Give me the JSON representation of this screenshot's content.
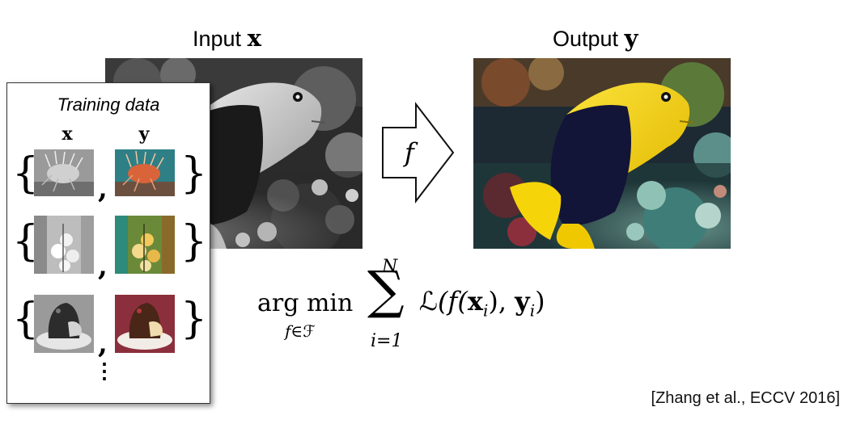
{
  "input_label": {
    "text": "Input ",
    "variable": "x"
  },
  "output_label": {
    "text": "Output ",
    "variable": "y"
  },
  "arrow_label": "f",
  "training": {
    "title": "Training data",
    "col_x": "x",
    "col_y": "y",
    "open_brace": "{",
    "close_brace": "}",
    "comma": ",",
    "ellipsis": "⋮"
  },
  "formula": {
    "operator": "arg min",
    "subscript": "f∈",
    "subscript_set": "ℱ",
    "upper_limit": "N",
    "lower_limit": "i=1",
    "sum_symbol": "∑",
    "expression_loss": "ℒ",
    "expression_pre": "(f(",
    "expression_x": "x",
    "expression_mid": "), ",
    "expression_y": "y",
    "sub_i": "i",
    "expression_end": ")"
  },
  "citation": "[Zhang et al., ECCV 2016]",
  "colors": {
    "fish_yellow": "#f5d40a",
    "fish_dark": "#121438",
    "reef_teal": "#4f8f86",
    "reef_red": "#8c2f3c"
  }
}
